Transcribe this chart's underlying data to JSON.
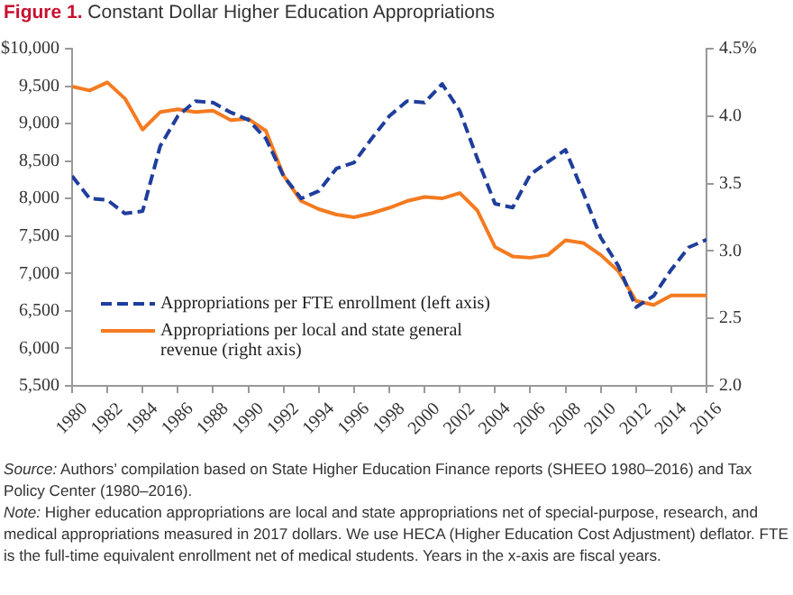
{
  "chart_data": {
    "type": "line",
    "title": "Figure 1. Constant Dollar Higher Education Appropriations",
    "x": [
      1980,
      1981,
      1982,
      1983,
      1984,
      1985,
      1986,
      1987,
      1988,
      1989,
      1990,
      1991,
      1992,
      1993,
      1994,
      1995,
      1996,
      1997,
      1998,
      1999,
      2000,
      2001,
      2002,
      2003,
      2004,
      2005,
      2006,
      2007,
      2008,
      2009,
      2010,
      2011,
      2012,
      2013,
      2014,
      2015,
      2016
    ],
    "series": [
      {
        "name": "Appropriations per FTE enrollment (left axis)",
        "color": "#1f3e9c",
        "line_style": "dashed",
        "values": [
          8300,
          8000,
          7980,
          7800,
          7830,
          8700,
          9100,
          9300,
          9280,
          9150,
          9050,
          8800,
          8300,
          8000,
          8100,
          8400,
          8480,
          8800,
          9100,
          9300,
          9280,
          9530,
          9170,
          8530,
          7930,
          7880,
          8320,
          8490,
          8650,
          8080,
          7480,
          7100,
          6550,
          6700,
          7050,
          7350,
          7450
        ]
      },
      {
        "name": "Appropriations per local and state general revenue (right axis)",
        "color": "#f47b20",
        "line_style": "solid",
        "axis": "y2",
        "values": [
          4.22,
          4.19,
          4.25,
          4.13,
          3.9,
          4.03,
          4.05,
          4.03,
          4.04,
          3.97,
          3.98,
          3.89,
          3.56,
          3.37,
          3.31,
          3.27,
          3.25,
          3.28,
          3.32,
          3.37,
          3.4,
          3.39,
          3.43,
          3.3,
          3.03,
          2.96,
          2.95,
          2.97,
          3.08,
          3.06,
          2.97,
          2.85,
          2.63,
          2.6,
          2.67,
          2.67,
          2.67
        ]
      }
    ],
    "xlim": [
      1980,
      2016
    ],
    "xticks": [
      1980,
      1982,
      1984,
      1986,
      1988,
      1990,
      1992,
      1994,
      1996,
      1998,
      2000,
      2002,
      2004,
      2006,
      2008,
      2010,
      2012,
      2014,
      2016
    ],
    "ylim": [
      5500,
      10000
    ],
    "yticks": [
      {
        "value": 5500,
        "label": "5,500"
      },
      {
        "value": 6000,
        "label": "6,000"
      },
      {
        "value": 6500,
        "label": "6,500"
      },
      {
        "value": 7000,
        "label": "7,000"
      },
      {
        "value": 7500,
        "label": "7,500"
      },
      {
        "value": 8000,
        "label": "8,000"
      },
      {
        "value": 8500,
        "label": "8,500"
      },
      {
        "value": 9000,
        "label": "9,000"
      },
      {
        "value": 9500,
        "label": "9,500"
      },
      {
        "value": 10000,
        "label": "$10,000"
      }
    ],
    "y2lim": [
      2.0,
      4.5
    ],
    "y2ticks": [
      {
        "value": 2.0,
        "label": "2.0"
      },
      {
        "value": 2.5,
        "label": "2.5"
      },
      {
        "value": 3.0,
        "label": "3.0"
      },
      {
        "value": 3.5,
        "label": "3.5"
      },
      {
        "value": 4.0,
        "label": "4.0"
      },
      {
        "value": 4.5,
        "label": "4.5%"
      }
    ],
    "grid": false,
    "legend": "bottom left",
    "marker": "none",
    "annotations": [
      "Source: Authors’ compilation based on State Higher Education Finance reports (SHEEO 1980–2016) and Tax Policy Center (1980–2016).",
      "Note: Higher education appropriations are local and state appropriations net of special-purpose, research, and medical appropriations measured in 2017 dollars. We use HECA (Higher Education Cost Adjustment) deflator. FTE is the full-time equivalent enrollment net of medical students. Years in the x-axis are fiscal years."
    ]
  }
}
